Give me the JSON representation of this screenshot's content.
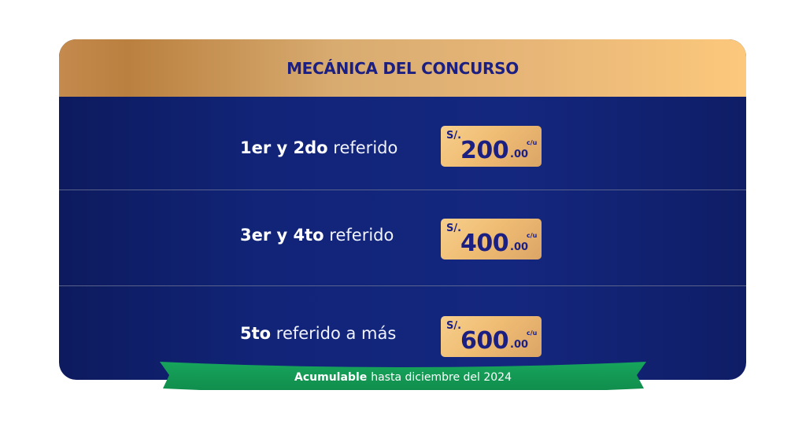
{
  "header": {
    "title": "MECÁNICA DEL CONCURSO"
  },
  "rows": [
    {
      "bold": "1er y 2do",
      "light": "referido",
      "currency": "S/.",
      "amount": "200",
      "cents": ".00",
      "unit": "c/u"
    },
    {
      "bold": "3er y 4to",
      "light": "referido",
      "currency": "S/.",
      "amount": "400",
      "cents": ".00",
      "unit": "c/u"
    },
    {
      "bold": "5to",
      "light": "referido a más",
      "currency": "S/.",
      "amount": "600",
      "cents": ".00",
      "unit": "c/u"
    }
  ],
  "ribbon": {
    "bold": "Acumulable",
    "text": "hasta diciembre del 2024"
  },
  "colors": {
    "navy": "#112478",
    "gold": "#e8b778",
    "title": "#1b1f82",
    "green": "#149a55"
  }
}
